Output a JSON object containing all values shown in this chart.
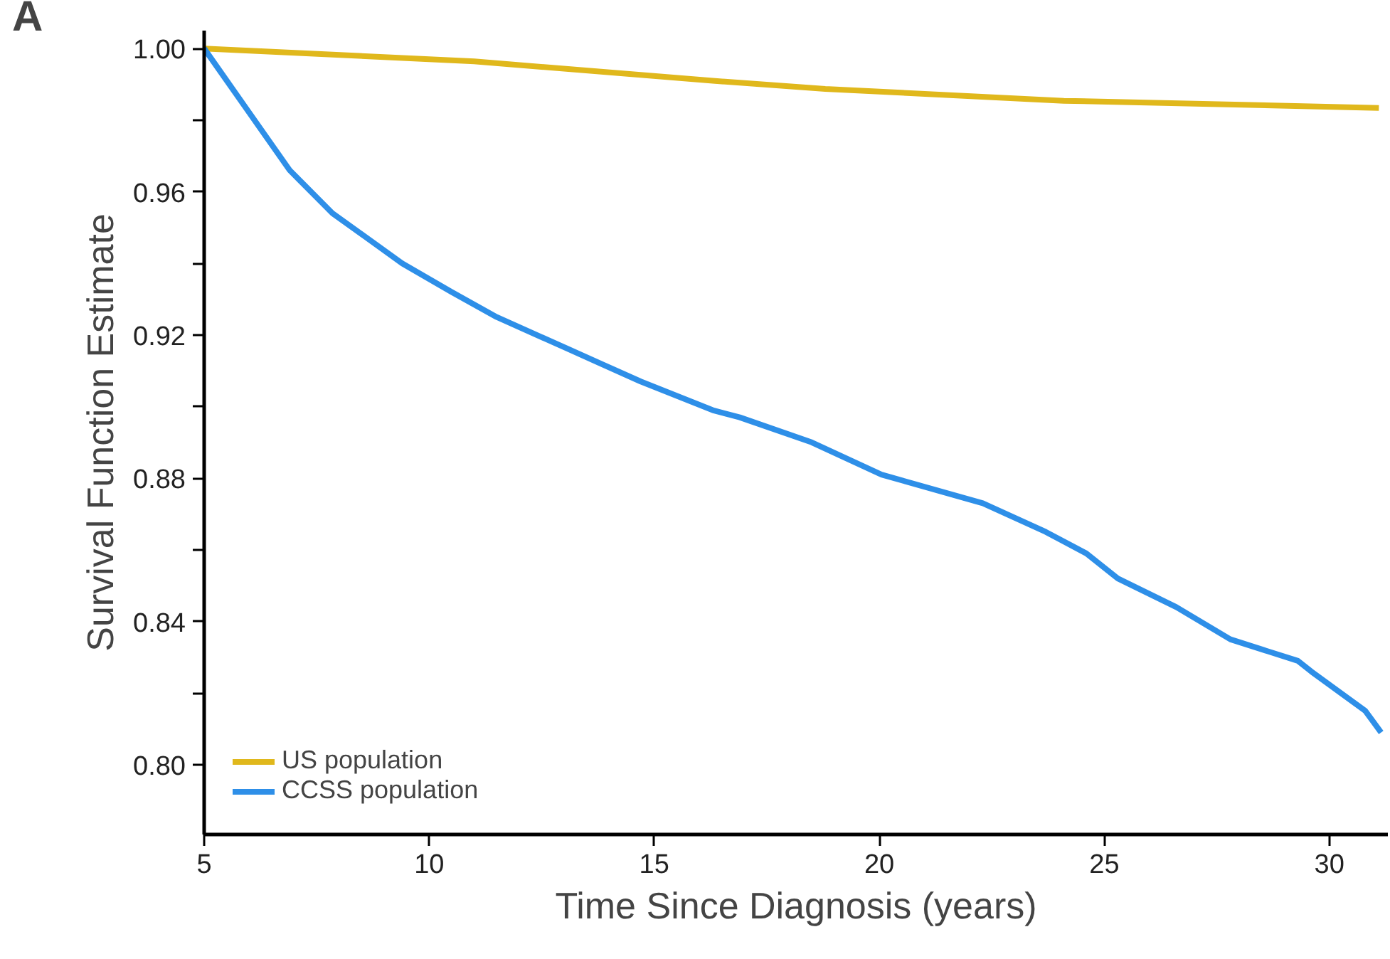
{
  "chart_data": {
    "type": "line",
    "xlabel": "Time Since Diagnosis (years)",
    "ylabel": "Survival Function Estimate",
    "annotations": [
      "A"
    ],
    "xlim": [
      5,
      31.3
    ],
    "xticks": [
      5,
      10,
      15,
      20,
      25,
      30
    ],
    "ylim": [
      0.7805,
      1.005
    ],
    "yticks": [
      {
        "value": 0.8,
        "label": "0.80"
      },
      {
        "value": 0.82,
        "label": null
      },
      {
        "value": 0.84,
        "label": "0.84"
      },
      {
        "value": 0.86,
        "label": null
      },
      {
        "value": 0.88,
        "label": "0.88"
      },
      {
        "value": 0.9,
        "label": null
      },
      {
        "value": 0.92,
        "label": "0.92"
      },
      {
        "value": 0.94,
        "label": null
      },
      {
        "value": 0.96,
        "label": "0.96"
      },
      {
        "value": 0.98,
        "label": null
      },
      {
        "value": 1.0,
        "label": "1.00"
      }
    ],
    "grid": false,
    "legend": "bottom left",
    "line_style": "solid",
    "marker": "none",
    "series": [
      {
        "name": "US population",
        "color": "#e0b81c",
        "x": [
          5,
          11,
          16.3,
          18.8,
          24.1,
          31.1
        ],
        "values": [
          1.0,
          0.9964,
          0.991,
          0.9887,
          0.9854,
          0.9834
        ]
      },
      {
        "name": "CCSS population",
        "color": "#2e8fe8",
        "x": [
          5,
          5.95,
          6.9,
          7.85,
          9.4,
          10.5,
          11.5,
          13.1,
          14.7,
          16.3,
          16.9,
          18.5,
          20.05,
          22.3,
          23.7,
          24.6,
          25.3,
          26.6,
          27.8,
          29.3,
          29.6,
          30.8,
          31.15
        ],
        "values": [
          1.0,
          0.983,
          0.966,
          0.954,
          0.94,
          0.932,
          0.925,
          0.916,
          0.907,
          0.899,
          0.897,
          0.89,
          0.881,
          0.873,
          0.865,
          0.859,
          0.852,
          0.844,
          0.835,
          0.829,
          0.826,
          0.815,
          0.809
        ]
      }
    ]
  }
}
